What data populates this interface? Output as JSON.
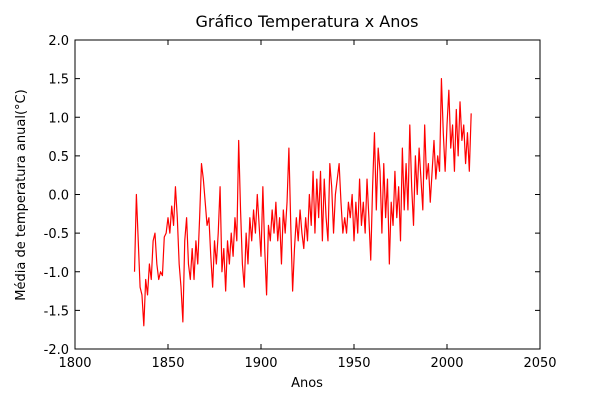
{
  "chart_data": {
    "type": "line",
    "title": "Gráfico Temperatura x Anos",
    "xlabel": "Anos",
    "ylabel": "Média de temperatura anual(°C)",
    "x": [
      1832,
      1833,
      1834,
      1835,
      1836,
      1837,
      1838,
      1839,
      1840,
      1841,
      1842,
      1843,
      1844,
      1845,
      1846,
      1847,
      1848,
      1849,
      1850,
      1851,
      1852,
      1853,
      1854,
      1855,
      1856,
      1857,
      1858,
      1859,
      1860,
      1861,
      1862,
      1863,
      1864,
      1865,
      1866,
      1867,
      1868,
      1869,
      1870,
      1871,
      1872,
      1873,
      1874,
      1875,
      1876,
      1877,
      1878,
      1879,
      1880,
      1881,
      1882,
      1883,
      1884,
      1885,
      1886,
      1887,
      1888,
      1889,
      1890,
      1891,
      1892,
      1893,
      1894,
      1895,
      1896,
      1897,
      1898,
      1899,
      1900,
      1901,
      1902,
      1903,
      1904,
      1905,
      1906,
      1907,
      1908,
      1909,
      1910,
      1911,
      1912,
      1913,
      1914,
      1915,
      1916,
      1917,
      1918,
      1919,
      1920,
      1921,
      1922,
      1923,
      1924,
      1925,
      1926,
      1927,
      1928,
      1929,
      1930,
      1931,
      1932,
      1933,
      1934,
      1935,
      1936,
      1937,
      1938,
      1939,
      1940,
      1941,
      1942,
      1943,
      1944,
      1945,
      1946,
      1947,
      1948,
      1949,
      1950,
      1951,
      1952,
      1953,
      1954,
      1955,
      1956,
      1957,
      1958,
      1959,
      1960,
      1961,
      1962,
      1963,
      1964,
      1965,
      1966,
      1967,
      1968,
      1969,
      1970,
      1971,
      1972,
      1973,
      1974,
      1975,
      1976,
      1977,
      1978,
      1979,
      1980,
      1981,
      1982,
      1983,
      1984,
      1985,
      1986,
      1987,
      1988,
      1989,
      1990,
      1991,
      1992,
      1993,
      1994,
      1995,
      1996,
      1997,
      1998,
      1999,
      2000,
      2001,
      2002,
      2003,
      2004,
      2005,
      2006,
      2007,
      2008,
      2009,
      2010,
      2011,
      2012,
      2013
    ],
    "series": [
      {
        "color": "#ff0000",
        "values": [
          -1.0,
          0.0,
          -0.6,
          -1.2,
          -1.3,
          -1.7,
          -1.1,
          -1.3,
          -0.9,
          -1.1,
          -0.6,
          -0.5,
          -0.9,
          -1.1,
          -1.0,
          -1.05,
          -0.55,
          -0.5,
          -0.3,
          -0.5,
          -0.15,
          -0.4,
          0.1,
          -0.3,
          -0.9,
          -1.2,
          -1.65,
          -0.6,
          -0.3,
          -0.9,
          -1.1,
          -0.7,
          -1.1,
          -0.6,
          -0.9,
          -0.3,
          0.4,
          0.2,
          -0.1,
          -0.4,
          -0.3,
          -0.8,
          -1.2,
          -0.6,
          -0.9,
          -0.5,
          0.1,
          -1.0,
          -0.7,
          -1.25,
          -0.6,
          -0.9,
          -0.5,
          -0.8,
          -0.3,
          -0.6,
          0.7,
          -0.2,
          -0.9,
          -1.2,
          -0.5,
          -0.9,
          -0.3,
          -0.6,
          -0.2,
          -0.5,
          0.0,
          -0.4,
          -0.8,
          0.1,
          -0.7,
          -1.3,
          -0.4,
          -0.6,
          -0.2,
          -0.5,
          -0.1,
          -0.6,
          -0.3,
          -0.9,
          -0.2,
          -0.5,
          -0.1,
          0.6,
          -0.4,
          -1.25,
          -0.7,
          -0.3,
          -0.6,
          -0.2,
          -0.5,
          -0.7,
          -0.3,
          -0.6,
          0.0,
          -0.4,
          0.3,
          -0.5,
          0.2,
          -0.3,
          0.3,
          -0.6,
          0.2,
          -0.3,
          -0.6,
          0.4,
          0.1,
          -0.5,
          0.0,
          0.2,
          0.4,
          -0.1,
          -0.5,
          -0.3,
          -0.5,
          -0.1,
          -0.3,
          0.0,
          -0.6,
          -0.1,
          -0.5,
          0.2,
          -0.4,
          -0.1,
          -0.5,
          0.2,
          -0.3,
          -0.85,
          0.1,
          0.8,
          -0.2,
          0.6,
          0.3,
          -0.5,
          0.4,
          -0.3,
          0.2,
          -0.9,
          -0.1,
          -0.4,
          0.3,
          -0.3,
          0.1,
          -0.6,
          0.6,
          -0.2,
          0.4,
          -0.2,
          0.9,
          0.1,
          -0.4,
          0.5,
          0.0,
          0.6,
          0.2,
          -0.2,
          0.9,
          0.2,
          0.4,
          -0.1,
          0.3,
          0.7,
          0.2,
          0.5,
          0.3,
          1.5,
          0.8,
          0.3,
          0.9,
          1.35,
          0.6,
          0.9,
          0.3,
          1.1,
          0.5,
          1.2,
          0.7,
          0.9,
          0.4,
          0.8,
          0.3,
          1.05
        ]
      }
    ],
    "xlim": [
      1800,
      2050
    ],
    "xticks": [
      1800,
      1850,
      1900,
      1950,
      2000,
      2050
    ],
    "ylim": [
      -2,
      2
    ],
    "yticks": [
      {
        "value": -2,
        "label": "-2.0"
      },
      -1.5,
      {
        "value": -1,
        "label": "-1.0"
      },
      -0.5,
      {
        "value": 0,
        "label": "0.0"
      },
      0.5,
      {
        "value": 1,
        "label": "1.0"
      },
      1.5,
      {
        "value": 2,
        "label": "2.0"
      }
    ],
    "grid": false
  }
}
